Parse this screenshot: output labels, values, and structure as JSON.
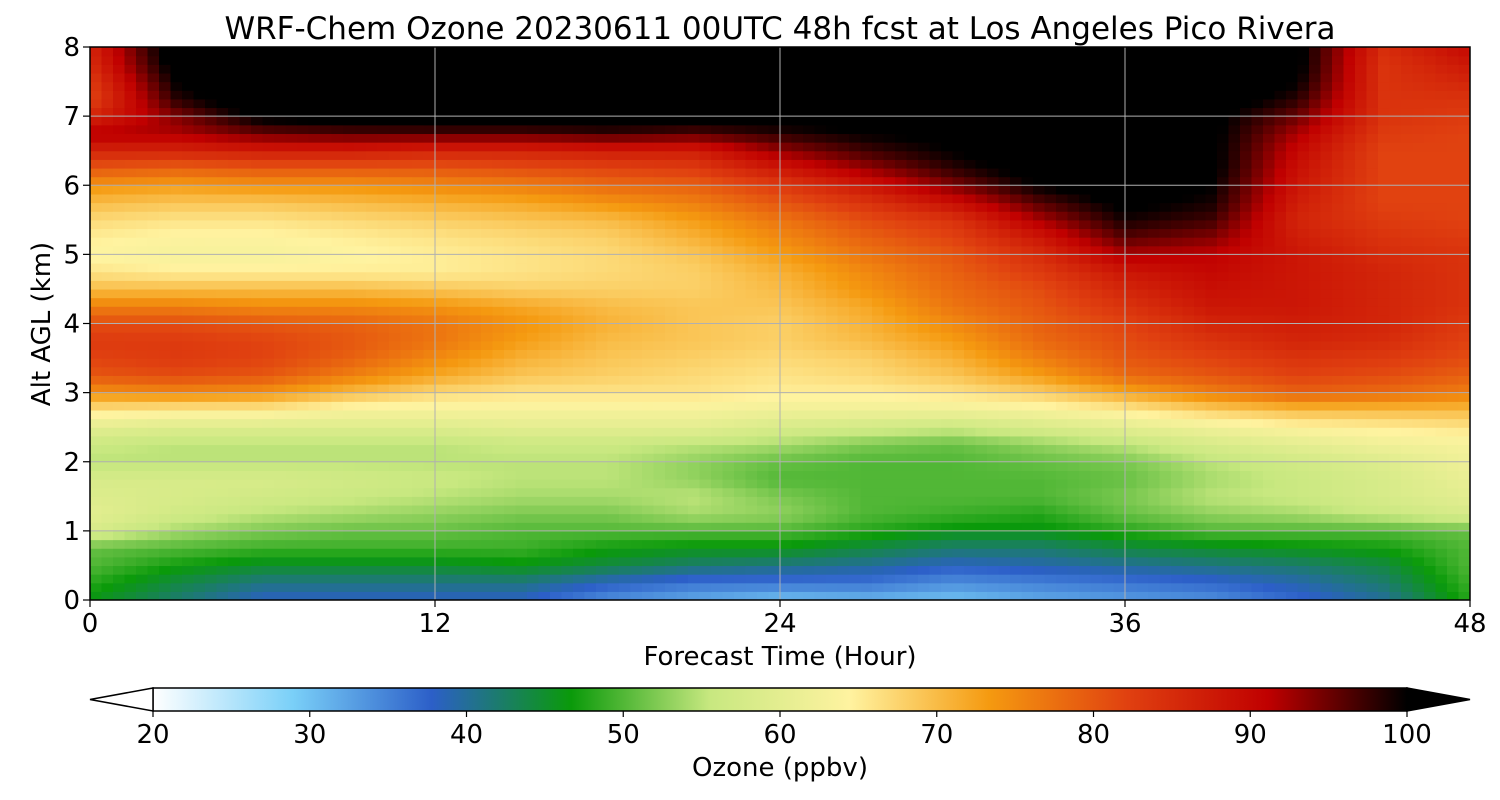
{
  "chart_data": {
    "type": "heatmap",
    "title": "WRF-Chem Ozone  20230611 00UTC 48h fcst at Los Angeles Pico Rivera",
    "xlabel": "Forecast Time (Hour)",
    "ylabel": "Alt AGL (km)",
    "xlim": [
      0,
      48
    ],
    "ylim": [
      0,
      8
    ],
    "x_ticks": [
      "0",
      "12",
      "24",
      "36",
      "48"
    ],
    "y_ticks": [
      "0",
      "1",
      "2",
      "3",
      "4",
      "5",
      "6",
      "7",
      "8"
    ],
    "grid": true,
    "colorbar": {
      "label": "Ozone  (ppbv)",
      "min": 20,
      "max": 100,
      "ticks": [
        "20",
        "30",
        "40",
        "50",
        "60",
        "70",
        "80",
        "90",
        "100"
      ],
      "extend": "both",
      "colors": [
        "#ffffff",
        "#7ad0f8",
        "#2c5fc8",
        "#0a9a0a",
        "#c8e880",
        "#fff3a0",
        "#f59a10",
        "#e04010",
        "#c00000",
        "#000000"
      ]
    },
    "x_hours": [
      0,
      3,
      6,
      9,
      12,
      15,
      18,
      21,
      24,
      27,
      30,
      33,
      36,
      39,
      42,
      45,
      48
    ],
    "altitudes_km": [
      0,
      0.25,
      0.5,
      0.75,
      1.0,
      1.25,
      1.5,
      1.75,
      2.0,
      2.25,
      2.5,
      2.75,
      3.0,
      3.25,
      3.5,
      3.75,
      4.0,
      4.25,
      4.5,
      4.75,
      5.0,
      5.25,
      5.5,
      5.75,
      6.0,
      6.25,
      6.5,
      6.75,
      7.0,
      7.25,
      7.5,
      7.75,
      8.0
    ],
    "ozone_ppbv": [
      [
        46,
        42,
        38,
        38,
        38,
        38,
        34,
        32,
        30,
        31,
        30,
        32,
        33,
        34,
        37,
        40,
        48
      ],
      [
        48,
        44,
        41,
        41,
        41,
        41,
        38,
        36,
        36,
        36,
        34,
        35,
        36,
        37,
        39,
        42,
        49
      ],
      [
        50,
        47,
        45,
        45,
        45,
        46,
        44,
        42,
        41,
        40,
        38,
        39,
        40,
        41,
        42,
        44,
        50
      ],
      [
        51,
        50,
        49,
        49,
        49,
        49,
        47,
        46,
        46,
        44,
        42,
        42,
        44,
        45,
        46,
        47,
        50
      ],
      [
        58,
        54,
        52,
        51,
        51,
        50,
        50,
        50,
        50,
        48,
        46,
        46,
        48,
        50,
        50,
        50,
        51
      ],
      [
        60,
        57,
        55,
        54,
        53,
        52,
        52,
        54,
        53,
        50,
        49,
        48,
        51,
        53,
        54,
        56,
        58
      ],
      [
        59,
        58,
        57,
        56,
        55,
        54,
        54,
        55,
        52,
        50,
        50,
        50,
        52,
        55,
        56,
        58,
        60
      ],
      [
        58,
        58,
        58,
        57,
        56,
        55,
        55,
        53,
        50,
        50,
        50,
        50,
        51,
        54,
        56,
        58,
        61
      ],
      [
        55,
        55,
        55,
        55,
        55,
        55,
        55,
        53,
        51,
        50,
        50,
        51,
        52,
        55,
        57,
        59,
        62
      ],
      [
        56,
        55,
        55,
        55,
        55,
        56,
        56,
        55,
        54,
        52,
        51,
        53,
        55,
        58,
        60,
        62,
        63
      ],
      [
        60,
        59,
        59,
        59,
        59,
        60,
        60,
        60,
        58,
        57,
        56,
        58,
        60,
        62,
        64,
        65,
        66
      ],
      [
        66,
        65,
        65,
        63,
        63,
        63,
        63,
        63,
        62,
        62,
        62,
        63,
        65,
        68,
        70,
        70,
        70
      ],
      [
        74,
        75,
        74,
        70,
        67,
        66,
        66,
        66,
        65,
        65,
        66,
        68,
        72,
        76,
        79,
        78,
        76
      ],
      [
        80,
        81,
        80,
        76,
        72,
        69,
        68,
        67,
        66,
        67,
        69,
        73,
        78,
        80,
        82,
        81,
        79
      ],
      [
        82,
        83,
        82,
        79,
        75,
        71,
        69,
        68,
        67,
        68,
        71,
        76,
        80,
        82,
        84,
        83,
        81
      ],
      [
        83,
        83,
        82,
        80,
        77,
        73,
        70,
        69,
        68,
        70,
        73,
        78,
        81,
        84,
        86,
        85,
        82
      ],
      [
        81,
        81,
        80,
        79,
        77,
        74,
        71,
        69,
        68,
        71,
        75,
        79,
        82,
        86,
        87,
        86,
        83
      ],
      [
        76,
        76,
        75,
        75,
        74,
        72,
        70,
        69,
        69,
        72,
        77,
        80,
        84,
        88,
        88,
        86,
        84
      ],
      [
        70,
        70,
        70,
        70,
        69,
        68,
        68,
        68,
        70,
        74,
        78,
        81,
        86,
        89,
        88,
        86,
        84
      ],
      [
        66,
        65,
        65,
        65,
        65,
        66,
        67,
        68,
        71,
        75,
        79,
        83,
        88,
        90,
        88,
        86,
        84
      ],
      [
        64,
        63,
        63,
        64,
        65,
        66,
        67,
        69,
        73,
        77,
        80,
        85,
        92,
        91,
        88,
        85,
        84
      ],
      [
        65,
        64,
        64,
        65,
        66,
        67,
        68,
        71,
        75,
        79,
        82,
        88,
        96,
        94,
        87,
        84,
        83
      ],
      [
        67,
        66,
        66,
        67,
        68,
        69,
        70,
        73,
        77,
        81,
        84,
        92,
        99,
        97,
        86,
        83,
        82
      ],
      [
        70,
        69,
        69,
        70,
        71,
        72,
        74,
        76,
        80,
        84,
        89,
        96,
        101,
        99,
        87,
        82,
        82
      ],
      [
        74,
        73,
        74,
        74,
        75,
        76,
        78,
        79,
        83,
        88,
        94,
        100,
        103,
        100,
        88,
        82,
        82
      ],
      [
        80,
        79,
        80,
        80,
        80,
        81,
        82,
        83,
        88,
        93,
        98,
        102,
        104,
        101,
        89,
        82,
        82
      ],
      [
        86,
        86,
        87,
        87,
        86,
        86,
        87,
        87,
        93,
        97,
        100,
        103,
        104,
        101,
        90,
        82,
        82
      ],
      [
        92,
        92,
        95,
        96,
        96,
        96,
        97,
        96,
        98,
        100,
        101,
        103,
        104,
        101,
        92,
        83,
        82
      ],
      [
        86,
        94,
        101,
        102,
        103,
        103,
        103,
        102,
        102,
        102,
        103,
        104,
        104,
        101,
        95,
        84,
        83
      ],
      [
        82,
        98,
        104,
        104,
        104,
        104,
        104,
        104,
        104,
        104,
        104,
        104,
        104,
        103,
        98,
        84,
        84
      ],
      [
        83,
        100,
        104,
        104,
        104,
        104,
        104,
        104,
        104,
        104,
        104,
        104,
        104,
        104,
        100,
        84,
        86
      ],
      [
        85,
        102,
        104,
        104,
        104,
        104,
        104,
        104,
        104,
        104,
        104,
        104,
        104,
        104,
        101,
        84,
        88
      ],
      [
        86,
        103,
        104,
        104,
        104,
        104,
        104,
        104,
        104,
        104,
        104,
        104,
        104,
        104,
        101,
        85,
        90
      ]
    ]
  }
}
